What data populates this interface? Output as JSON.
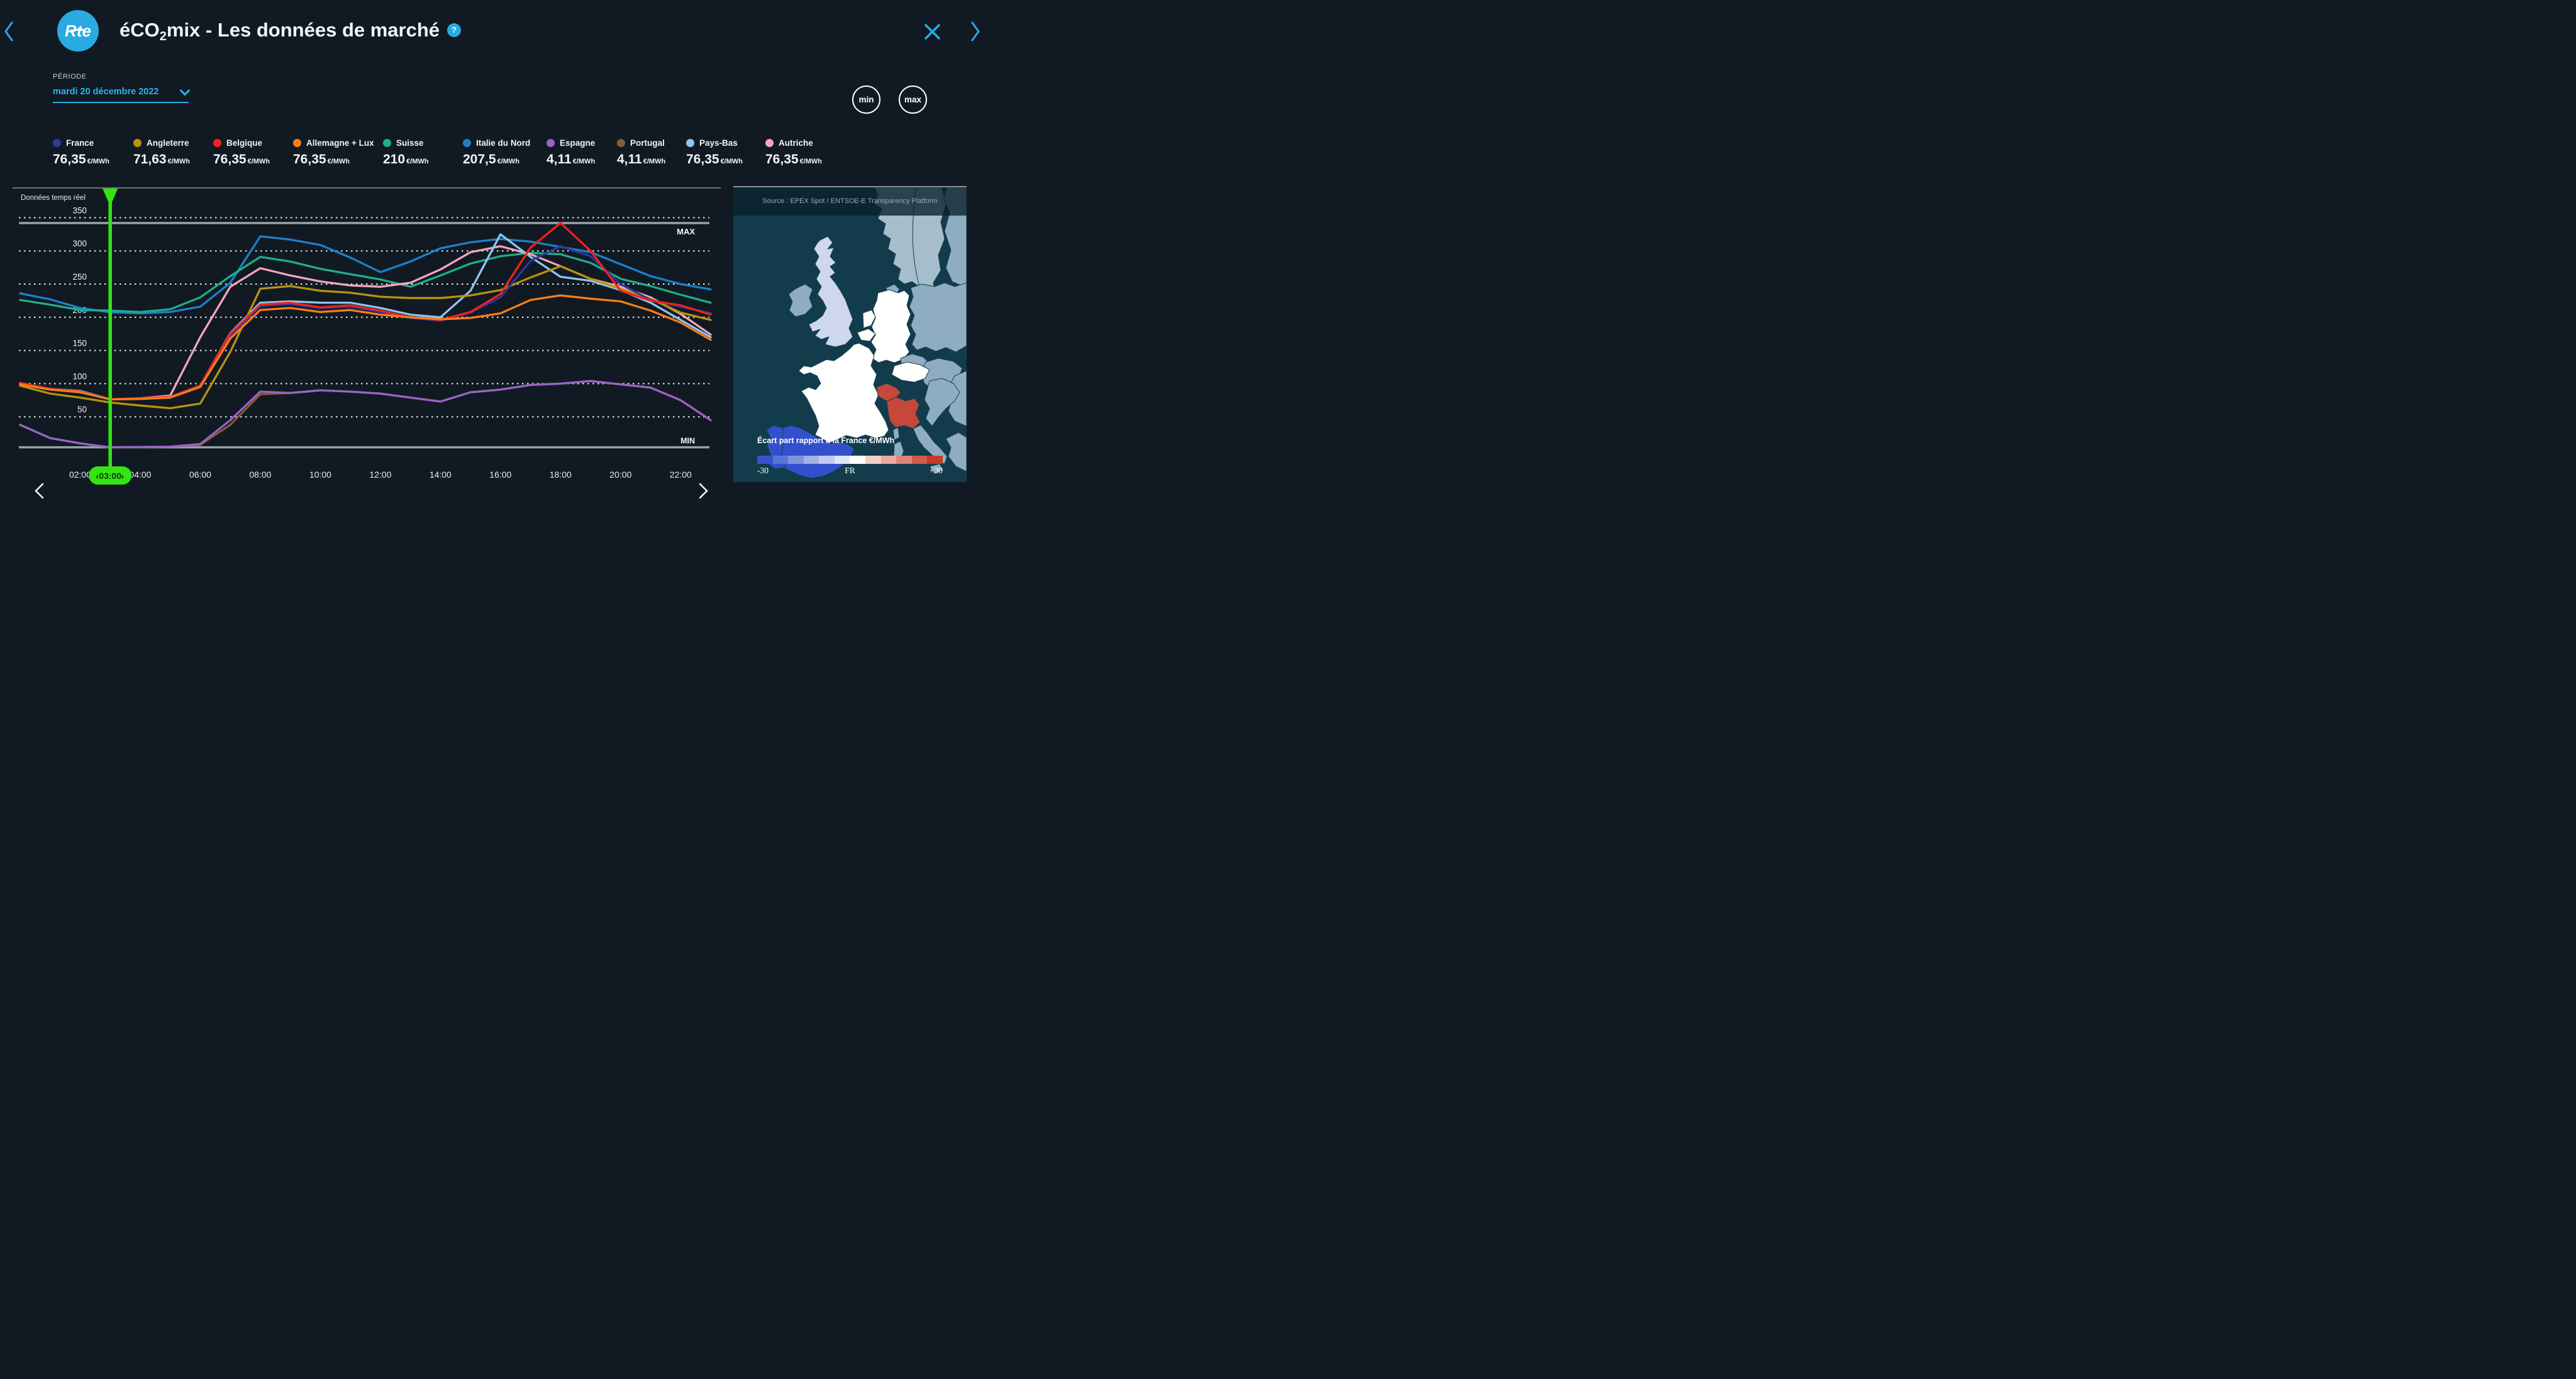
{
  "header": {
    "logo_text": "Rte",
    "title": {
      "pre": "éCO",
      "sub": "2",
      "post": "mix - Les données de marché"
    },
    "help_label": "?"
  },
  "period": {
    "label": "PÉRIODE",
    "value": "mardi 20 décembre 2022"
  },
  "controls": {
    "min_label": "min",
    "max_label": "max"
  },
  "nav": {
    "back_icon": "chevron-left",
    "next_icon": "chevron-right",
    "close_icon": "close-x",
    "chart_prev_icon": "chevron-left",
    "chart_next_icon": "chevron-right"
  },
  "accent_color": "#29abe2",
  "chart_data": {
    "type": "line",
    "title": "Données temps réel",
    "unit": "€/MWh",
    "x_hours_range": [
      0,
      23
    ],
    "x_ticks": [
      {
        "h": 2,
        "label": "02:00"
      },
      {
        "h": 4,
        "label": "04:00"
      },
      {
        "h": 6,
        "label": "06:00"
      },
      {
        "h": 8,
        "label": "08:00"
      },
      {
        "h": 10,
        "label": "10:00"
      },
      {
        "h": 12,
        "label": "12:00"
      },
      {
        "h": 14,
        "label": "14:00"
      },
      {
        "h": 16,
        "label": "16:00"
      },
      {
        "h": 18,
        "label": "18:00"
      },
      {
        "h": 20,
        "label": "20:00"
      },
      {
        "h": 22,
        "label": "22:00"
      }
    ],
    "yticks": [
      50,
      100,
      150,
      200,
      250,
      300,
      350
    ],
    "ylim": [
      0,
      365
    ],
    "grid": "dotted-horizontal",
    "max_line": {
      "label": "MAX",
      "value": 342
    },
    "min_line": {
      "label": "MIN",
      "value": 4.11
    },
    "slider": {
      "hour": 3,
      "label": "03:00",
      "prev_glyph": "‹",
      "next_glyph": "›",
      "color": "#33e513"
    },
    "draw_order": [
      5,
      4,
      9,
      8,
      1,
      0,
      2,
      3,
      7,
      6
    ],
    "series": [
      {
        "name": "France",
        "color": "#2b3a9e",
        "value_label": "76,35",
        "values": [
          100,
          91,
          88,
          76.35,
          77,
          79,
          96,
          172,
          217,
          220,
          214,
          216,
          208,
          199,
          195,
          207,
          230,
          285,
          307,
          292,
          250,
          226,
          216,
          206
        ]
      },
      {
        "name": "Angleterre",
        "color": "#b8930f",
        "value_label": "71,63",
        "values": [
          97,
          85,
          79,
          71.63,
          67,
          63,
          70,
          148,
          243,
          247,
          240,
          237,
          231,
          229,
          229,
          233,
          241,
          260,
          277,
          258,
          243,
          228,
          207,
          196
        ]
      },
      {
        "name": "Belgique",
        "color": "#f3201d",
        "value_label": "76,35",
        "values": [
          101,
          92,
          88,
          76.35,
          78,
          80,
          97,
          175,
          219,
          222,
          215,
          218,
          210,
          200,
          196,
          208,
          235,
          305,
          342,
          300,
          240,
          225,
          218,
          204
        ]
      },
      {
        "name": "Allemagne + Lux",
        "color": "#fb7d17",
        "value_label": "76,35",
        "values": [
          99,
          91,
          87,
          76.35,
          77,
          79,
          95,
          168,
          211,
          214,
          208,
          211,
          204,
          200,
          197,
          199,
          206,
          226,
          233,
          228,
          224,
          210,
          192,
          166
        ]
      },
      {
        "name": "Suisse",
        "color": "#1fae8a",
        "value_label": "210",
        "values": [
          226,
          219,
          211,
          210,
          208,
          212,
          230,
          262,
          291,
          284,
          273,
          265,
          257,
          246,
          263,
          281,
          292,
          297,
          295,
          282,
          258,
          247,
          234,
          222
        ]
      },
      {
        "name": "Italie du Nord",
        "color": "#1d80ca",
        "value_label": "207,5",
        "values": [
          236,
          227,
          214,
          207.5,
          206,
          208,
          216,
          252,
          322,
          317,
          309,
          290,
          268,
          284,
          304,
          313,
          318,
          314,
          306,
          298,
          280,
          262,
          250,
          242
        ]
      },
      {
        "name": "Espagne",
        "color": "#9a63c4",
        "value_label": "4,11",
        "values": [
          38,
          18,
          10,
          4.11,
          4.5,
          5,
          9,
          45,
          88,
          86,
          90,
          88,
          85,
          79,
          73,
          87,
          91,
          98,
          100,
          104,
          99,
          94,
          75,
          45
        ]
      },
      {
        "name": "Portugal",
        "color": "#8a5a33",
        "value_label": "4,11",
        "values": [
          38,
          18,
          10,
          4.11,
          4.5,
          5,
          8,
          38,
          84,
          86,
          90,
          88,
          85,
          79,
          73,
          87,
          91,
          98,
          100,
          104,
          99,
          94,
          75,
          45
        ]
      },
      {
        "name": "Pays-Bas",
        "color": "#8ec6ee",
        "value_label": "76,35",
        "values": [
          101,
          92,
          89,
          76.35,
          77,
          80,
          97,
          176,
          222,
          224,
          222,
          222,
          214,
          204,
          200,
          240,
          325,
          291,
          261,
          255,
          241,
          222,
          196,
          170
        ]
      },
      {
        "name": "Autriche",
        "color": "#f6a6ba",
        "value_label": "76,35",
        "values": [
          100,
          92,
          88,
          76.35,
          78,
          82,
          170,
          246,
          274,
          263,
          254,
          248,
          246,
          252,
          272,
          298,
          307,
          295,
          277,
          258,
          246,
          230,
          205,
          174
        ]
      }
    ]
  },
  "map": {
    "source": "Source : EPEX Spot / ENTSOE-E Transparency Platform",
    "caption": "Écart part rapport à la France €/MWh",
    "scale": {
      "min_label": "-30",
      "mid_label": "FR",
      "max_label": "+30",
      "colors": [
        "#3952cd",
        "#5b74d8",
        "#8093e0",
        "#a3b1e8",
        "#c0caf0",
        "#dfe5f7",
        "#ffffff",
        "#f2cfca",
        "#e9ab9f",
        "#de8477",
        "#d25c4a",
        "#c53b28"
      ]
    },
    "region_colors": {
      "sea": "#123c4c",
      "scandinavia": "#a6bdcc",
      "neutral": "#8fadc0",
      "uk": "#ced7ee",
      "white_zone": "#ffffff",
      "iberia": "#3350cc",
      "alpine_red": "#c5483a"
    }
  }
}
